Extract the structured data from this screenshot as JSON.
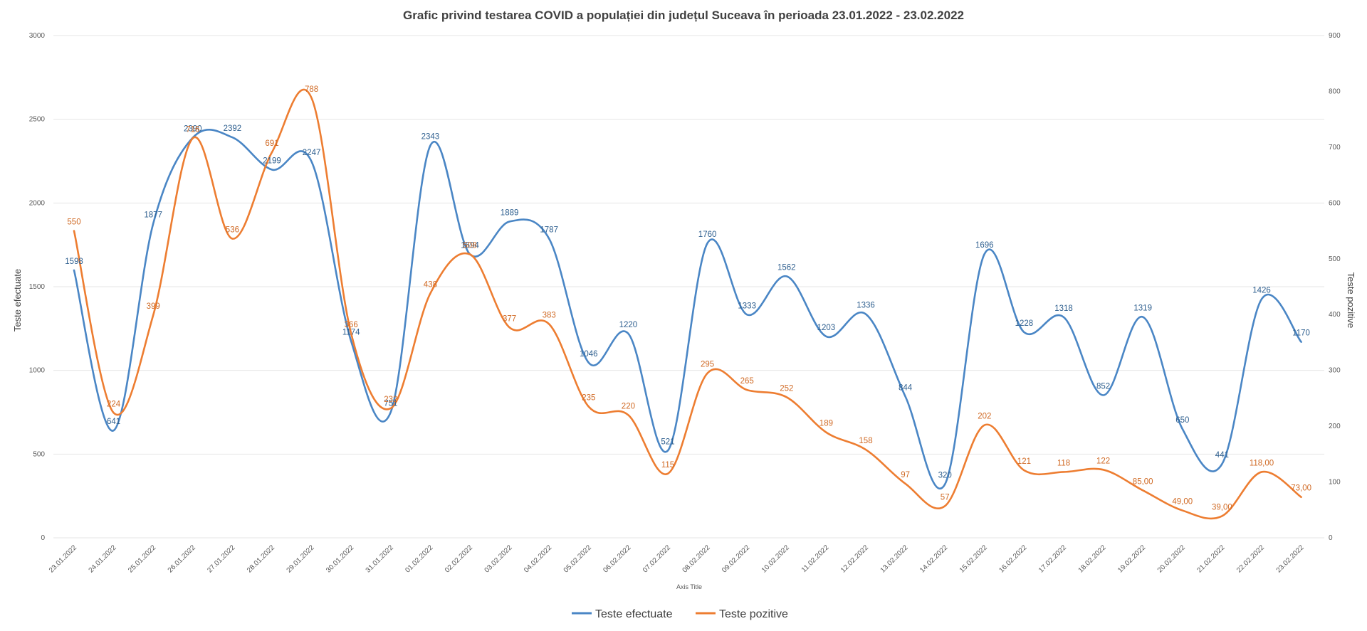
{
  "chart_data": {
    "type": "line",
    "title": "Grafic privind testarea COVID a populației din județul Suceava în perioada 23.01.2022 - 23.02.2022",
    "xlabel": "Axis Title",
    "ylabel": "Teste efectuate",
    "y2label": "Teste pozitive",
    "ylim": [
      0,
      3000
    ],
    "y2lim": [
      0,
      900
    ],
    "yticks": [
      "0",
      "500",
      "1000",
      "1500",
      "2000",
      "2500",
      "3000"
    ],
    "y2ticks": [
      "0",
      "100",
      "200",
      "300",
      "400",
      "500",
      "600",
      "700",
      "800",
      "900"
    ],
    "grid": true,
    "legend_position": "bottom",
    "categories": [
      "23.01.2022",
      "24.01.2022",
      "25.01.2022",
      "26.01.2022",
      "27.01.2022",
      "28.01.2022",
      "29.01.2022",
      "30.01.2022",
      "31.01.2022",
      "01.02.2022",
      "02.02.2022",
      "03.02.2022",
      "04.02.2022",
      "05.02.2022",
      "06.02.2022",
      "07.02.2022",
      "08.02.2022",
      "09.02.2022",
      "10.02.2022",
      "11.02.2022",
      "12.02.2022",
      "13.02.2022",
      "14.02.2022",
      "15.02.2022",
      "16.02.2022",
      "17.02.2022",
      "18.02.2022",
      "19.02.2022",
      "20.02.2022",
      "21.02.2022",
      "22.02.2022",
      "23.02.2022"
    ],
    "series": [
      {
        "name": "Teste efectuate",
        "axis": "left",
        "color": "#4a86c5",
        "label_color": "#2e5f8f",
        "values": [
          1598,
          641,
          1877,
          2390,
          2392,
          2199,
          2247,
          1174,
          751,
          2343,
          1694,
          1889,
          1787,
          1046,
          1220,
          521,
          1760,
          1333,
          1562,
          1203,
          1336,
          844,
          320,
          1696,
          1228,
          1318,
          852,
          1319,
          650,
          441,
          1426,
          1170
        ],
        "labels": [
          "1598",
          "641",
          "1877",
          "2390",
          "2392",
          "2199",
          "2247",
          "1174",
          "751",
          "2343",
          "1694",
          "1889",
          "1787",
          "1046",
          "1220",
          "521",
          "1760",
          "1333",
          "1562",
          "1203",
          "1336",
          "844",
          "320",
          "1696",
          "1228",
          "1318",
          "852",
          "1319",
          "650",
          "441",
          "1426",
          "1170"
        ]
      },
      {
        "name": "Teste pozitive",
        "axis": "right",
        "color": "#ed7d31",
        "label_color": "#d06a25",
        "values": [
          550,
          224,
          399,
          716,
          536,
          691,
          788,
          366,
          232,
          438,
          508,
          377,
          383,
          235,
          220,
          115,
          295,
          265,
          252,
          189,
          158,
          97,
          57,
          202,
          121,
          118,
          122,
          85,
          49,
          39,
          118,
          73
        ],
        "labels": [
          "550",
          "224",
          "399",
          "716",
          "536",
          "691",
          "788",
          "366",
          "232",
          "438",
          "508",
          "377",
          "383",
          "235",
          "220",
          "115",
          "295",
          "265",
          "252",
          "189",
          "158",
          "97",
          "57",
          "202",
          "121",
          "118",
          "122",
          "85,00",
          "49,00",
          "39,00",
          "118,00",
          "73,00"
        ]
      }
    ]
  }
}
